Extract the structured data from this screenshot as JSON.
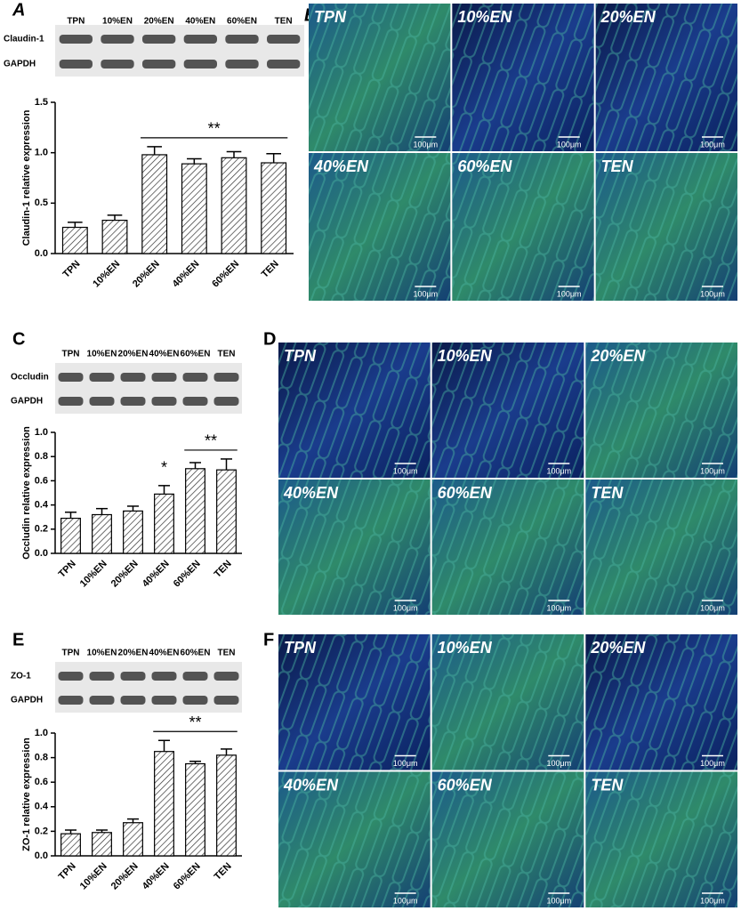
{
  "chart_data": [
    {
      "type": "bar",
      "ylabel": "Claudin-1 relative expression",
      "categories": [
        "TPN",
        "10%EN",
        "20%EN",
        "40%EN",
        "60%EN",
        "TEN"
      ],
      "values": [
        0.26,
        0.33,
        0.98,
        0.89,
        0.95,
        0.9
      ],
      "errors": [
        0.05,
        0.05,
        0.08,
        0.05,
        0.06,
        0.09
      ],
      "ylim": [
        0,
        1.5
      ],
      "yticks": [
        {
          "value": 0,
          "label": "0.0"
        },
        0.5,
        {
          "value": 1,
          "label": "1.0"
        },
        1.5
      ],
      "color": "#ffffff",
      "hatch": true,
      "annotations": [
        {
          "text": "**",
          "span": [
            "20%EN",
            "TEN"
          ]
        }
      ]
    },
    {
      "type": "bar",
      "ylabel": "Occludin relative expression",
      "categories": [
        "TPN",
        "10%EN",
        "20%EN",
        "40%EN",
        "60%EN",
        "TEN"
      ],
      "values": [
        0.29,
        0.32,
        0.35,
        0.49,
        0.7,
        0.69
      ],
      "errors": [
        0.05,
        0.05,
        0.04,
        0.07,
        0.05,
        0.09
      ],
      "ylim": [
        0,
        1
      ],
      "yticks": [
        {
          "value": 0,
          "label": "0.0"
        },
        0.2,
        0.4,
        0.6,
        0.8,
        {
          "value": 1,
          "label": "1.0"
        }
      ],
      "color": "#ffffff",
      "hatch": true,
      "annotations": [
        {
          "text": "*",
          "span": [
            "40%EN",
            "40%EN"
          ]
        },
        {
          "text": "**",
          "span": [
            "60%EN",
            "TEN"
          ]
        }
      ]
    },
    {
      "type": "bar",
      "ylabel": "ZO-1 relative expression",
      "categories": [
        "TPN",
        "10%EN",
        "20%EN",
        "40%EN",
        "60%EN",
        "TEN"
      ],
      "values": [
        0.18,
        0.19,
        0.27,
        0.85,
        0.75,
        0.82
      ],
      "errors": [
        0.03,
        0.02,
        0.03,
        0.09,
        0.02,
        0.05
      ],
      "ylim": [
        0,
        1
      ],
      "yticks": [
        {
          "value": 0,
          "label": "0.0"
        },
        0.2,
        0.4,
        0.6,
        0.8,
        {
          "value": 1,
          "label": "1.0"
        }
      ],
      "color": "#ffffff",
      "hatch": true,
      "annotations": [
        {
          "text": "**",
          "span": [
            "40%EN",
            "TEN"
          ]
        }
      ]
    }
  ],
  "panels": [
    "A",
    "B",
    "C",
    "D",
    "E",
    "F"
  ],
  "blots": [
    {
      "lanes": [
        "TPN",
        "10%EN",
        "20%EN",
        "40%EN",
        "60%EN",
        "TEN"
      ],
      "rows": [
        "Claudin-1",
        "GAPDH"
      ]
    },
    {
      "lanes": [
        "TPN",
        "10%EN",
        "20%EN",
        "40%EN",
        "60%EN",
        "TEN"
      ],
      "rows": [
        "Occludin",
        "GAPDH"
      ]
    },
    {
      "lanes": [
        "TPN",
        "10%EN",
        "20%EN",
        "40%EN",
        "60%EN",
        "TEN"
      ],
      "rows": [
        "ZO-1",
        "GAPDH"
      ]
    }
  ],
  "micrographs": [
    {
      "groups": [
        "TPN",
        "10%EN",
        "20%EN",
        "40%EN",
        "60%EN",
        "TEN"
      ],
      "scale": "100μm"
    },
    {
      "groups": [
        "TPN",
        "10%EN",
        "20%EN",
        "40%EN",
        "60%EN",
        "TEN"
      ],
      "scale": "100μm"
    },
    {
      "groups": [
        "TPN",
        "10%EN",
        "20%EN",
        "40%EN",
        "60%EN",
        "TEN"
      ],
      "scale": "100μm"
    }
  ]
}
